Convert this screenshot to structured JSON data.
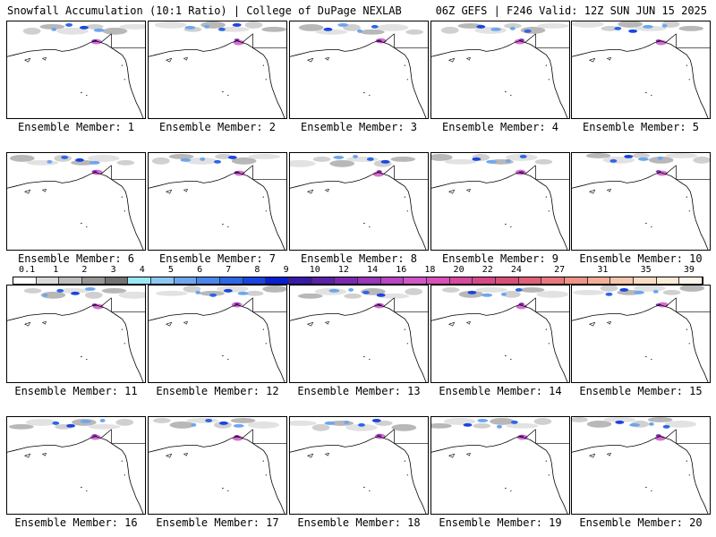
{
  "header": {
    "left_title": "Snowfall Accumulation (10:1 Ratio) | College of DuPage NEXLAB",
    "right_title": "06Z GEFS | F246 Valid: 12Z SUN JUN 15 2025"
  },
  "panels": [
    {
      "label": "Ensemble Member: 1"
    },
    {
      "label": "Ensemble Member: 2"
    },
    {
      "label": "Ensemble Member: 3"
    },
    {
      "label": "Ensemble Member: 4"
    },
    {
      "label": "Ensemble Member: 5"
    },
    {
      "label": "Ensemble Member: 6"
    },
    {
      "label": "Ensemble Member: 7"
    },
    {
      "label": "Ensemble Member: 8"
    },
    {
      "label": "Ensemble Member: 9"
    },
    {
      "label": "Ensemble Member: 10"
    },
    {
      "label": "Ensemble Member: 11"
    },
    {
      "label": "Ensemble Member: 12"
    },
    {
      "label": "Ensemble Member: 13"
    },
    {
      "label": "Ensemble Member: 14"
    },
    {
      "label": "Ensemble Member: 15"
    },
    {
      "label": "Ensemble Member: 16"
    },
    {
      "label": "Ensemble Member: 17"
    },
    {
      "label": "Ensemble Member: 18"
    },
    {
      "label": "Ensemble Member: 19"
    },
    {
      "label": "Ensemble Member: 20"
    }
  ],
  "legend": {
    "labels": [
      "0.1",
      "1",
      "2",
      "3",
      "4",
      "5",
      "6",
      "7",
      "8",
      "9",
      "10",
      "12",
      "14",
      "16",
      "18",
      "20",
      "22",
      "24",
      "27",
      "31",
      "35",
      "39"
    ],
    "colors": [
      "#ffffff",
      "#d9d9d9",
      "#bdbdbd",
      "#969696",
      "#737373",
      "#9be8f5",
      "#8ec6f2",
      "#6ea6ee",
      "#4d86ea",
      "#2d66e6",
      "#1a45e0",
      "#0a1fd0",
      "#3a1aa8",
      "#5a22a8",
      "#7a2ab0",
      "#9a36b8",
      "#b845c2",
      "#d056c8",
      "#d850b8",
      "#d84aa0",
      "#d84888",
      "#d8507a",
      "#e0607a",
      "#e8787e",
      "#ee9486",
      "#f2ae98",
      "#f6c6ac",
      "#f9dcc2",
      "#fbead6",
      "#fdf4ea"
    ]
  }
}
